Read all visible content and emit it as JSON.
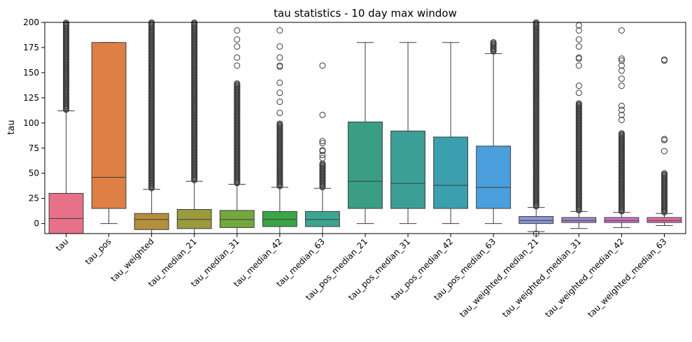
{
  "chart_data": {
    "type": "box",
    "title": "tau statistics - 10 day max window",
    "xlabel": "",
    "ylabel": "tau",
    "ylim": [
      -10,
      200
    ],
    "yticks": [
      0,
      25,
      50,
      75,
      100,
      125,
      150,
      175,
      200
    ],
    "boxes": [
      {
        "label": "tau",
        "color": "#e8718a",
        "q1": -10,
        "median": 5,
        "q3": 30,
        "whisker_low": -10,
        "whisker_high": 112,
        "outliers": [],
        "dense_outliers": [
          112,
          200
        ]
      },
      {
        "label": "tau_pos",
        "color": "#de7f46",
        "q1": 15,
        "median": 46,
        "q3": 180,
        "whisker_low": 0,
        "whisker_high": 180,
        "outliers": [],
        "dense_outliers": null
      },
      {
        "label": "tau_weighted",
        "color": "#b48f3c",
        "q1": -6,
        "median": 4,
        "q3": 10,
        "whisker_low": -10,
        "whisker_high": 34,
        "outliers": [],
        "dense_outliers": [
          34,
          200
        ]
      },
      {
        "label": "tau_median_21",
        "color": "#9b9a3c",
        "q1": -5,
        "median": 4,
        "q3": 14,
        "whisker_low": -10,
        "whisker_high": 42,
        "outliers": [],
        "dense_outliers": [
          42,
          200
        ]
      },
      {
        "label": "tau_median_31",
        "color": "#74a83c",
        "q1": -4,
        "median": 4,
        "q3": 13,
        "whisker_low": -10,
        "whisker_high": 39,
        "outliers": [
          192,
          183,
          176,
          165,
          157
        ],
        "dense_outliers": [
          39,
          140
        ]
      },
      {
        "label": "tau_median_42",
        "color": "#3ca546",
        "q1": -3,
        "median": 4,
        "q3": 12,
        "whisker_low": -10,
        "whisker_high": 36,
        "outliers": [
          192,
          176,
          165,
          157,
          156,
          140,
          130,
          121,
          110
        ],
        "dense_outliers": [
          36,
          100
        ]
      },
      {
        "label": "tau_median_63",
        "color": "#3ca58f",
        "q1": -3,
        "median": 4,
        "q3": 12,
        "whisker_low": -10,
        "whisker_high": 35,
        "outliers": [
          157,
          108,
          82,
          80,
          73,
          72,
          68,
          65
        ],
        "dense_outliers": [
          35,
          60
        ]
      },
      {
        "label": "tau_pos_median_21",
        "color": "#3a9e84",
        "q1": 15,
        "median": 42,
        "q3": 101,
        "whisker_low": 0,
        "whisker_high": 180,
        "outliers": [],
        "dense_outliers": null
      },
      {
        "label": "tau_pos_median_31",
        "color": "#3b9f98",
        "q1": 15,
        "median": 40,
        "q3": 92,
        "whisker_low": 0,
        "whisker_high": 180,
        "outliers": [],
        "dense_outliers": null
      },
      {
        "label": "tau_pos_median_42",
        "color": "#3c9fad",
        "q1": 15,
        "median": 38,
        "q3": 86,
        "whisker_low": 0,
        "whisker_high": 180,
        "outliers": [],
        "dense_outliers": null
      },
      {
        "label": "tau_pos_median_63",
        "color": "#4a9fdc",
        "q1": 15,
        "median": 36,
        "q3": 77,
        "whisker_low": 0,
        "whisker_high": 169,
        "outliers": [],
        "dense_outliers": [
          170,
          181
        ]
      },
      {
        "label": "tau_weighted_median_21",
        "color": "#8c95d4",
        "q1": 0,
        "median": 3,
        "q3": 7,
        "whisker_low": -8,
        "whisker_high": 16,
        "outliers": [
          -10
        ],
        "dense_outliers": [
          16,
          200
        ]
      },
      {
        "label": "tau_weighted_median_31",
        "color": "#a489cc",
        "q1": 1,
        "median": 3,
        "q3": 6,
        "whisker_low": -5,
        "whisker_high": 12,
        "outliers": [
          197,
          192,
          183,
          176,
          165,
          164,
          157,
          137,
          130
        ],
        "dense_outliers": [
          12,
          120
        ]
      },
      {
        "label": "tau_weighted_median_42",
        "color": "#d173cb",
        "q1": 1,
        "median": 3,
        "q3": 6,
        "whisker_low": -4,
        "whisker_high": 11,
        "outliers": [
          192,
          164,
          162,
          157,
          152,
          144,
          137,
          117,
          113,
          108,
          103
        ],
        "dense_outliers": [
          11,
          90
        ]
      },
      {
        "label": "tau_weighted_median_63",
        "color": "#e36fa8",
        "q1": 1,
        "median": 3,
        "q3": 6,
        "whisker_low": -2,
        "whisker_high": 10,
        "outliers": [
          163,
          162,
          84,
          83,
          72
        ],
        "dense_outliers": [
          10,
          50
        ]
      }
    ]
  }
}
